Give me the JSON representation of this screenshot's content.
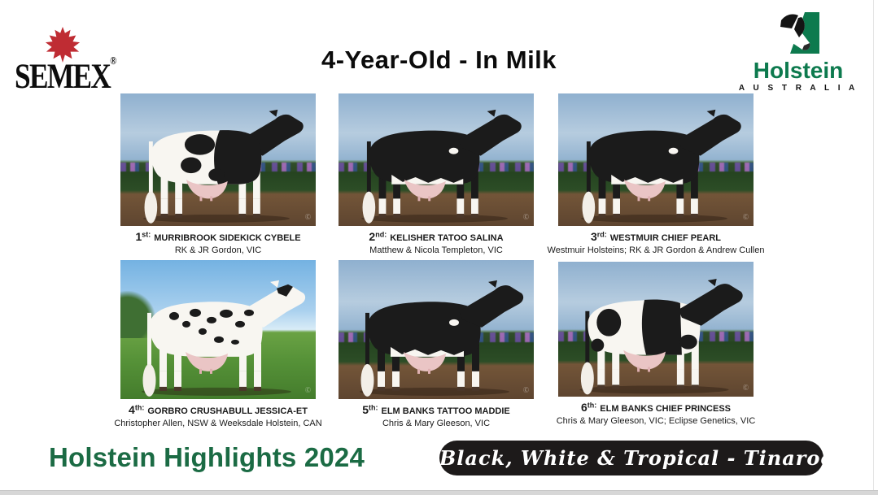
{
  "header": {
    "semex_logo": {
      "text": "SEMEX",
      "registered_mark": "®",
      "maple_leaf_icon": "maple-leaf",
      "leaf_color": "#bf2c33"
    },
    "title": "4-Year-Old - In Milk",
    "holstein_logo": {
      "name": "Holstein",
      "country": "A U S T R A L I A",
      "cow_icon": "holstein-cow-head",
      "green": "#0d7a4e"
    }
  },
  "results": [
    {
      "rank": "1",
      "suffix": "st:",
      "name": "MURRIBROOK SIDEKICK CYBELE",
      "owner": "RK & JR Gordon, VIC",
      "photo": {
        "background": "studio",
        "cow": "front-black"
      }
    },
    {
      "rank": "2",
      "suffix": "nd:",
      "name": "KELISHER TATOO SALINA",
      "owner": "Matthew & Nicola Templeton, VIC",
      "photo": {
        "background": "studio",
        "cow": "mostly-black"
      }
    },
    {
      "rank": "3",
      "suffix": "rd:",
      "name": "WESTMUIR CHIEF PEARL",
      "owner": "Westmuir Holsteins; RK & JR Gordon & Andrew Cullen",
      "photo": {
        "background": "studio",
        "cow": "mostly-black"
      }
    },
    {
      "rank": "4",
      "suffix": "th:",
      "name": "GORBRO CRUSHABULL JESSICA-ET",
      "owner": "Christopher Allen, NSW & Weeksdale Holstein, CAN",
      "photo": {
        "background": "outdoor",
        "cow": "spotted"
      }
    },
    {
      "rank": "5",
      "suffix": "th:",
      "name": "ELM BANKS TATTOO MADDIE",
      "owner": "Chris & Mary Gleeson, VIC",
      "photo": {
        "background": "studio",
        "cow": "mostly-black"
      }
    },
    {
      "rank": "6",
      "suffix": "th:",
      "name": "ELM BANKS CHIEF PRINCESS",
      "owner": "Chris & Mary Gleeson, VIC; Eclipse Genetics, VIC",
      "photo": {
        "background": "studio",
        "cow": "patched"
      }
    }
  ],
  "footer": {
    "title": "Holstein Highlights 2024",
    "title_color": "#1b6b44",
    "badge": {
      "text": "Black, White & Tropical - Tinaroo",
      "bg": "#1d1a1a",
      "fg": "#ffffff"
    }
  }
}
